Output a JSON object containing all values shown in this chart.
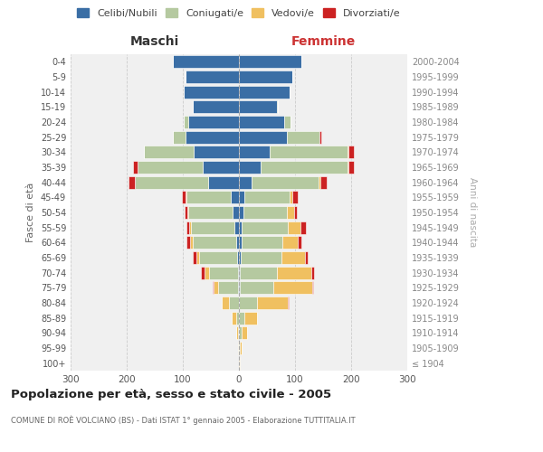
{
  "age_groups": [
    "100+",
    "95-99",
    "90-94",
    "85-89",
    "80-84",
    "75-79",
    "70-74",
    "65-69",
    "60-64",
    "55-59",
    "50-54",
    "45-49",
    "40-44",
    "35-39",
    "30-34",
    "25-29",
    "20-24",
    "15-19",
    "10-14",
    "5-9",
    "0-4"
  ],
  "birth_years": [
    "≤ 1904",
    "1905-1909",
    "1910-1914",
    "1915-1919",
    "1920-1924",
    "1925-1929",
    "1930-1934",
    "1935-1939",
    "1940-1944",
    "1945-1949",
    "1950-1954",
    "1955-1959",
    "1960-1964",
    "1965-1969",
    "1970-1974",
    "1975-1979",
    "1980-1984",
    "1985-1989",
    "1990-1994",
    "1995-1999",
    "2000-2004"
  ],
  "colors": {
    "celibe": "#3a6ea5",
    "coniugato": "#b5c9a0",
    "vedovo": "#f0c060",
    "divorziato": "#cc2222"
  },
  "male": {
    "celibe": [
      0,
      0,
      0,
      0,
      0,
      2,
      2,
      3,
      5,
      8,
      12,
      14,
      55,
      65,
      80,
      95,
      90,
      82,
      98,
      95,
      118
    ],
    "coniugato": [
      0,
      0,
      2,
      5,
      18,
      35,
      52,
      68,
      78,
      77,
      78,
      80,
      130,
      115,
      90,
      22,
      8,
      0,
      0,
      0,
      0
    ],
    "vedovo": [
      0,
      1,
      3,
      8,
      12,
      8,
      8,
      5,
      4,
      3,
      2,
      1,
      0,
      0,
      0,
      0,
      0,
      0,
      0,
      0,
      0
    ],
    "divorziato": [
      0,
      0,
      0,
      0,
      0,
      2,
      5,
      6,
      6,
      6,
      5,
      6,
      12,
      8,
      0,
      0,
      0,
      0,
      0,
      0,
      0
    ]
  },
  "female": {
    "nubile": [
      0,
      0,
      0,
      0,
      0,
      2,
      2,
      3,
      5,
      5,
      8,
      10,
      22,
      38,
      55,
      85,
      80,
      68,
      90,
      95,
      112
    ],
    "coniugata": [
      0,
      2,
      5,
      10,
      32,
      60,
      65,
      72,
      72,
      82,
      78,
      80,
      120,
      155,
      138,
      58,
      12,
      2,
      0,
      0,
      0
    ],
    "vedova": [
      1,
      3,
      10,
      22,
      55,
      68,
      62,
      42,
      28,
      22,
      12,
      5,
      3,
      2,
      2,
      1,
      0,
      0,
      0,
      0,
      0
    ],
    "divorziata": [
      0,
      0,
      0,
      0,
      2,
      2,
      5,
      5,
      6,
      10,
      5,
      10,
      12,
      10,
      10,
      2,
      0,
      0,
      0,
      0,
      0
    ]
  },
  "xlim": 300,
  "title": "Popolazione per età, sesso e stato civile - 2005",
  "subtitle": "COMUNE DI ROÈ VOLCIANO (BS) - Dati ISTAT 1° gennaio 2005 - Elaborazione TUTTITALIA.IT",
  "ylabel_left": "Fasce di età",
  "ylabel_right": "Anni di nascita",
  "xlabel_left": "Maschi",
  "xlabel_right": "Femmine",
  "bg_color": "#f0f0f0",
  "grid_color": "#cccccc"
}
